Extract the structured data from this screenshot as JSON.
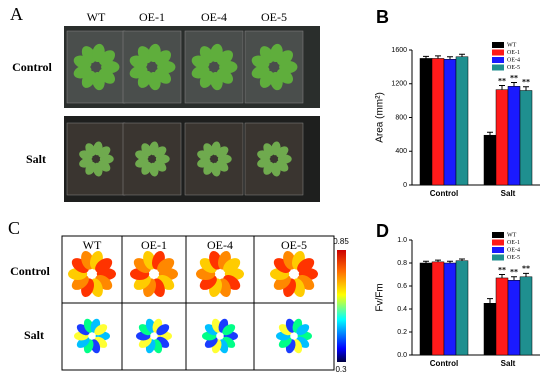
{
  "panel_labels": [
    "A",
    "B",
    "C",
    "D"
  ],
  "photo_panel": {
    "columns": [
      "WT",
      "OE-1",
      "OE-4",
      "OE-5"
    ],
    "rows": [
      "Control",
      "Salt"
    ]
  },
  "heatmap_panel": {
    "columns": [
      "WT",
      "OE-1",
      "OE-4",
      "OE-5"
    ],
    "rows": [
      "Control",
      "Salt"
    ],
    "colorbar": {
      "max": 0.85,
      "min": 0.3
    }
  },
  "chart_data": [
    {
      "type": "bar",
      "y_label": "Area (mm²)",
      "categories": [
        "Control",
        "Salt"
      ],
      "ylim": [
        0,
        1600
      ],
      "yticks": [
        0,
        400,
        800,
        1200,
        1600
      ],
      "legend": "top-right",
      "series": [
        {
          "name": "WT",
          "color": "#000000",
          "values": [
            1500,
            590
          ],
          "errors": [
            25,
            35
          ],
          "annotations": [
            null,
            null
          ]
        },
        {
          "name": "OE-1",
          "color": "#ff1a1a",
          "values": [
            1500,
            1130
          ],
          "errors": [
            30,
            50
          ],
          "annotations": [
            null,
            "**"
          ]
        },
        {
          "name": "OE-4",
          "color": "#1a1aff",
          "values": [
            1490,
            1170
          ],
          "errors": [
            30,
            45
          ],
          "annotations": [
            null,
            "**"
          ]
        },
        {
          "name": "OE-5",
          "color": "#1f8f8f",
          "values": [
            1520,
            1120
          ],
          "errors": [
            30,
            45
          ],
          "annotations": [
            null,
            "**"
          ]
        }
      ]
    },
    {
      "type": "bar",
      "y_label": "Fv/Fm",
      "categories": [
        "Control",
        "Salt"
      ],
      "ylim": [
        0,
        1.0
      ],
      "yticks": [
        {
          "value": 0,
          "label": "0.0"
        },
        0.2,
        0.4,
        0.6,
        0.8,
        {
          "value": 1.0,
          "label": "1.0"
        }
      ],
      "legend": "top-right",
      "series": [
        {
          "name": "WT",
          "color": "#000000",
          "values": [
            0.8,
            0.45
          ],
          "errors": [
            0.015,
            0.04
          ],
          "annotations": [
            null,
            null
          ]
        },
        {
          "name": "OE-1",
          "color": "#ff1a1a",
          "values": [
            0.81,
            0.67
          ],
          "errors": [
            0.015,
            0.03
          ],
          "annotations": [
            null,
            "**"
          ]
        },
        {
          "name": "OE-4",
          "color": "#1a1aff",
          "values": [
            0.8,
            0.65
          ],
          "errors": [
            0.015,
            0.03
          ],
          "annotations": [
            null,
            "**"
          ]
        },
        {
          "name": "OE-5",
          "color": "#1f8f8f",
          "values": [
            0.82,
            0.68
          ],
          "errors": [
            0.015,
            0.03
          ],
          "annotations": [
            null,
            "**"
          ]
        }
      ]
    }
  ]
}
